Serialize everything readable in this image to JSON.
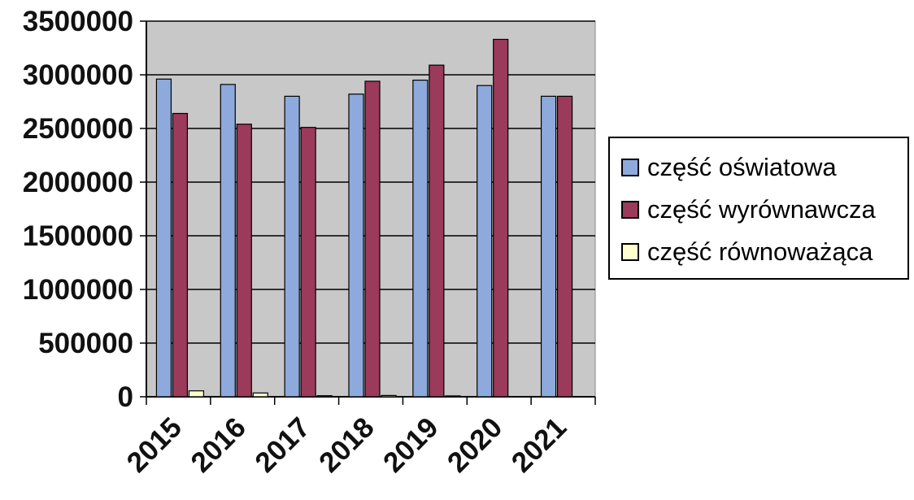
{
  "chart_data": {
    "type": "bar",
    "categories": [
      "2015",
      "2016",
      "2017",
      "2018",
      "2019",
      "2020",
      "2021"
    ],
    "series": [
      {
        "name": "część oświatowa",
        "color": "#8EAADC",
        "values": [
          2960000,
          2910000,
          2800000,
          2820000,
          2950000,
          2900000,
          2800000
        ]
      },
      {
        "name": "część wyrównawcza",
        "color": "#9B3A5A",
        "values": [
          2640000,
          2540000,
          2510000,
          2940000,
          3090000,
          3330000,
          2800000
        ]
      },
      {
        "name": "część równoważąca",
        "color": "#FFFFCC",
        "values": [
          55000,
          35000,
          10000,
          12000,
          8000,
          0,
          0
        ]
      }
    ],
    "ylim": [
      0,
      3500000
    ],
    "yticks": [
      "0",
      "500000",
      "1000000",
      "1500000",
      "2000000",
      "2500000",
      "3000000",
      "3500000"
    ],
    "grid": true,
    "legend_position": "right",
    "plot_background": "#C8C8C8"
  }
}
